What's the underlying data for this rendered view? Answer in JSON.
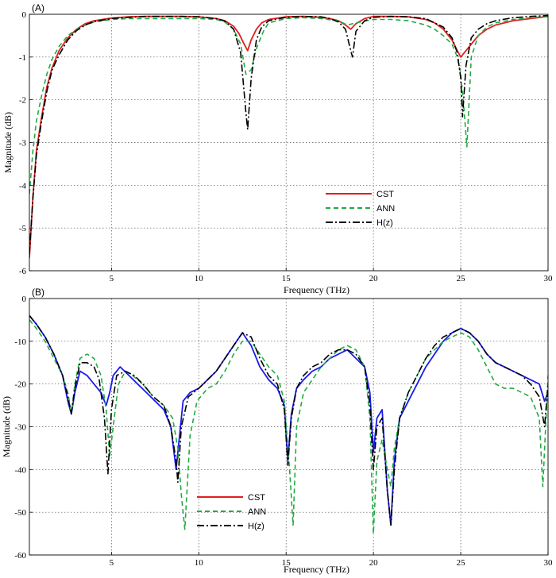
{
  "chart_data": [
    {
      "type": "line",
      "panel_label": "(A)",
      "xlabel": "Frequency (THz)",
      "ylabel": "Magnitude (dB)",
      "xlim": [
        0.3,
        30
      ],
      "ylim": [
        -6,
        0
      ],
      "x_ticks": [
        5,
        10,
        15,
        20,
        25,
        30
      ],
      "y_ticks": [
        0,
        -1,
        -2,
        -3,
        -4,
        -5,
        -6
      ],
      "grid": true,
      "legend_position": "lower-center",
      "series": [
        {
          "name": "CST",
          "color": "#e02020",
          "style": "solid",
          "x": [
            0.3,
            0.5,
            0.7,
            1.0,
            1.3,
            1.6,
            2.0,
            2.5,
            3.0,
            3.5,
            4.0,
            5.0,
            6.0,
            7.0,
            8.0,
            9.0,
            10.0,
            11.0,
            11.5,
            12.0,
            12.3,
            12.6,
            12.8,
            13.0,
            13.3,
            13.6,
            14.0,
            15.0,
            16.0,
            17.0,
            17.5,
            18.0,
            18.4,
            18.7,
            19.0,
            19.5,
            20.0,
            21.0,
            22.0,
            23.0,
            23.5,
            24.0,
            24.5,
            24.8,
            25.0,
            25.2,
            25.4,
            25.7,
            26.0,
            26.5,
            27.0,
            28.0,
            29.0,
            30.0
          ],
          "y": [
            -5.7,
            -4.3,
            -3.2,
            -2.4,
            -1.7,
            -1.25,
            -0.85,
            -0.55,
            -0.35,
            -0.22,
            -0.15,
            -0.09,
            -0.06,
            -0.05,
            -0.05,
            -0.05,
            -0.06,
            -0.1,
            -0.15,
            -0.28,
            -0.45,
            -0.7,
            -0.85,
            -0.6,
            -0.35,
            -0.2,
            -0.12,
            -0.06,
            -0.05,
            -0.07,
            -0.1,
            -0.15,
            -0.25,
            -0.35,
            -0.22,
            -0.1,
            -0.05,
            -0.05,
            -0.06,
            -0.12,
            -0.2,
            -0.35,
            -0.6,
            -0.85,
            -1.0,
            -0.9,
            -0.8,
            -0.65,
            -0.5,
            -0.35,
            -0.25,
            -0.15,
            -0.1,
            -0.05
          ]
        },
        {
          "name": "ANN",
          "color": "#22aa44",
          "style": "dashed",
          "x": [
            0.3,
            0.5,
            0.7,
            1.0,
            1.3,
            1.6,
            2.0,
            2.5,
            3.0,
            3.5,
            4.0,
            5.0,
            6.0,
            7.0,
            8.0,
            9.0,
            10.0,
            11.0,
            11.5,
            12.0,
            12.4,
            12.7,
            13.0,
            13.3,
            13.7,
            14.0,
            15.0,
            16.0,
            17.0,
            18.0,
            18.5,
            19.0,
            20.0,
            21.0,
            22.0,
            23.0,
            23.5,
            24.0,
            24.5,
            24.8,
            25.0,
            25.2,
            25.35,
            25.6,
            26.0,
            26.5,
            27.0,
            28.0,
            29.0,
            30.0
          ],
          "y": [
            -4.2,
            -3.2,
            -2.5,
            -1.9,
            -1.4,
            -1.05,
            -0.75,
            -0.5,
            -0.35,
            -0.25,
            -0.18,
            -0.12,
            -0.1,
            -0.1,
            -0.1,
            -0.1,
            -0.1,
            -0.12,
            -0.18,
            -0.35,
            -0.7,
            -1.4,
            -1.3,
            -0.8,
            -0.4,
            -0.2,
            -0.1,
            -0.08,
            -0.1,
            -0.15,
            -0.25,
            -0.2,
            -0.12,
            -0.12,
            -0.15,
            -0.25,
            -0.35,
            -0.5,
            -0.7,
            -1.0,
            -1.4,
            -2.3,
            -3.1,
            -1.0,
            -0.5,
            -0.3,
            -0.2,
            -0.12,
            -0.08,
            -0.05
          ]
        },
        {
          "name": "H(z)",
          "color": "#000000",
          "style": "dashdot",
          "x": [
            0.3,
            0.5,
            0.7,
            1.0,
            1.3,
            1.6,
            2.0,
            2.5,
            3.0,
            3.5,
            4.0,
            5.0,
            6.0,
            7.0,
            8.0,
            9.0,
            10.0,
            11.0,
            11.5,
            12.0,
            12.4,
            12.7,
            12.8,
            13.0,
            13.3,
            13.6,
            14.0,
            15.0,
            16.0,
            17.0,
            17.5,
            18.0,
            18.4,
            18.7,
            18.8,
            19.0,
            19.5,
            20.0,
            21.0,
            22.0,
            23.0,
            24.0,
            24.5,
            24.8,
            25.0,
            25.1,
            25.3,
            25.6,
            26.0,
            26.5,
            27.0,
            28.0,
            29.0,
            30.0
          ],
          "y": [
            -5.6,
            -4.3,
            -3.3,
            -2.5,
            -1.8,
            -1.3,
            -0.95,
            -0.6,
            -0.38,
            -0.25,
            -0.17,
            -0.1,
            -0.07,
            -0.05,
            -0.05,
            -0.05,
            -0.06,
            -0.1,
            -0.16,
            -0.35,
            -0.9,
            -2.3,
            -2.7,
            -1.5,
            -0.6,
            -0.3,
            -0.15,
            -0.07,
            -0.05,
            -0.06,
            -0.1,
            -0.18,
            -0.35,
            -0.85,
            -1.0,
            -0.4,
            -0.15,
            -0.07,
            -0.05,
            -0.06,
            -0.1,
            -0.3,
            -0.55,
            -0.9,
            -1.5,
            -2.4,
            -1.2,
            -0.55,
            -0.35,
            -0.22,
            -0.15,
            -0.08,
            -0.05,
            -0.03
          ]
        }
      ]
    },
    {
      "type": "line",
      "panel_label": "(B)",
      "xlabel": "Frequency (THz)",
      "ylabel": "Magnitude (dB)",
      "xlim": [
        0.3,
        30
      ],
      "ylim": [
        -60,
        0
      ],
      "x_ticks": [
        5,
        10,
        15,
        20,
        25,
        30
      ],
      "y_ticks": [
        0,
        -10,
        -20,
        -30,
        -40,
        -50,
        -60
      ],
      "grid": true,
      "legend_position": "lower-left-center",
      "series": [
        {
          "name": "CST",
          "color": "#1a1aee",
          "legend_color": "#e02020",
          "style": "solid",
          "x": [
            0.3,
            0.7,
            1.2,
            1.7,
            2.2,
            2.5,
            2.7,
            2.9,
            3.2,
            3.6,
            4.0,
            4.4,
            4.7,
            4.9,
            5.1,
            5.5,
            6.0,
            6.5,
            7.0,
            7.5,
            8.0,
            8.4,
            8.7,
            8.9,
            9.1,
            9.5,
            10.0,
            10.5,
            11.0,
            11.5,
            12.0,
            12.5,
            13.0,
            13.5,
            14.0,
            14.5,
            14.9,
            15.1,
            15.3,
            15.6,
            16.0,
            16.5,
            17.0,
            17.5,
            18.0,
            18.5,
            19.0,
            19.5,
            19.8,
            20.0,
            20.2,
            20.5,
            20.8,
            21.0,
            21.2,
            21.5,
            22.0,
            22.5,
            23.0,
            23.5,
            24.0,
            24.5,
            25.0,
            25.5,
            26.0,
            26.5,
            27.0,
            27.5,
            28.0,
            28.5,
            29.0,
            29.5,
            29.8,
            30.0
          ],
          "y": [
            -4,
            -6,
            -9,
            -13,
            -18,
            -24,
            -27,
            -22,
            -17,
            -18,
            -20,
            -22,
            -25,
            -22,
            -18,
            -16,
            -18,
            -20,
            -22,
            -24,
            -26,
            -30,
            -40,
            -32,
            -24,
            -22,
            -21,
            -19,
            -17,
            -14,
            -11,
            -8,
            -11,
            -16,
            -19,
            -21,
            -25,
            -38,
            -27,
            -21,
            -19,
            -17,
            -16,
            -14,
            -13,
            -12,
            -14,
            -16,
            -22,
            -36,
            -28,
            -26,
            -45,
            -53,
            -38,
            -28,
            -24,
            -20,
            -16,
            -13,
            -10,
            -8,
            -7,
            -8,
            -10,
            -13,
            -15,
            -16,
            -17,
            -18,
            -19,
            -20,
            -24,
            -22
          ]
        },
        {
          "name": "ANN",
          "color": "#22aa44",
          "style": "dashed",
          "x": [
            0.3,
            0.7,
            1.2,
            1.7,
            2.2,
            2.5,
            2.7,
            2.9,
            3.2,
            3.6,
            4.0,
            4.4,
            4.7,
            4.9,
            5.1,
            5.4,
            5.8,
            6.2,
            6.8,
            7.4,
            8.0,
            8.5,
            8.8,
            9.0,
            9.2,
            9.5,
            9.9,
            10.5,
            11.0,
            11.5,
            12.0,
            12.5,
            13.0,
            13.5,
            14.0,
            14.5,
            14.9,
            15.2,
            15.4,
            15.6,
            16.0,
            16.5,
            17.0,
            17.5,
            18.0,
            18.5,
            19.0,
            19.5,
            19.8,
            20.0,
            20.2,
            20.5,
            20.8,
            21.0,
            21.2,
            21.5,
            22.0,
            22.5,
            23.0,
            23.5,
            24.0,
            24.5,
            25.0,
            25.5,
            26.0,
            26.5,
            27.0,
            27.5,
            28.0,
            28.5,
            29.0,
            29.5,
            29.7,
            30.0
          ],
          "y": [
            -5,
            -7,
            -10,
            -14,
            -18,
            -22,
            -27,
            -20,
            -14,
            -13,
            -14,
            -18,
            -26,
            -37,
            -30,
            -20,
            -17,
            -18,
            -20,
            -23,
            -25,
            -28,
            -35,
            -46,
            -54,
            -32,
            -24,
            -21,
            -20,
            -17,
            -13,
            -10,
            -10,
            -13,
            -16,
            -18,
            -24,
            -40,
            -53,
            -30,
            -22,
            -19,
            -16,
            -14,
            -12,
            -11,
            -12,
            -16,
            -28,
            -55,
            -38,
            -33,
            -40,
            -44,
            -35,
            -28,
            -22,
            -18,
            -14,
            -12,
            -10,
            -9,
            -8,
            -9,
            -12,
            -16,
            -20,
            -21,
            -21,
            -22,
            -23,
            -28,
            -44,
            -18
          ]
        },
        {
          "name": "H(z)",
          "color": "#000000",
          "style": "dashdot",
          "x": [
            0.3,
            0.7,
            1.2,
            1.7,
            2.2,
            2.5,
            2.7,
            2.9,
            3.2,
            3.6,
            4.0,
            4.3,
            4.6,
            4.8,
            5.0,
            5.3,
            5.8,
            6.3,
            6.8,
            7.4,
            8.0,
            8.4,
            8.7,
            8.8,
            9.0,
            9.4,
            10.0,
            10.5,
            11.0,
            11.5,
            12.0,
            12.5,
            13.0,
            13.5,
            14.0,
            14.5,
            14.9,
            15.1,
            15.3,
            15.6,
            16.0,
            16.5,
            17.0,
            17.5,
            18.0,
            18.5,
            19.0,
            19.5,
            19.8,
            20.0,
            20.2,
            20.5,
            20.8,
            21.0,
            21.2,
            21.5,
            22.0,
            22.5,
            23.0,
            23.5,
            24.0,
            24.5,
            25.0,
            25.5,
            26.0,
            26.5,
            27.0,
            27.5,
            28.0,
            28.5,
            29.0,
            29.5,
            29.8,
            30.0
          ],
          "y": [
            -4,
            -6,
            -9,
            -13,
            -18,
            -23,
            -27,
            -21,
            -15,
            -15,
            -16,
            -19,
            -28,
            -41,
            -26,
            -18,
            -17,
            -18,
            -20,
            -23,
            -25,
            -30,
            -38,
            -43,
            -30,
            -23,
            -21,
            -19,
            -17,
            -14,
            -11,
            -8,
            -9,
            -14,
            -18,
            -20,
            -26,
            -39,
            -28,
            -21,
            -18,
            -16,
            -15,
            -13,
            -12,
            -12,
            -13,
            -16,
            -25,
            -40,
            -30,
            -28,
            -45,
            -53,
            -40,
            -28,
            -22,
            -18,
            -14,
            -11,
            -9,
            -8,
            -7,
            -8,
            -10,
            -13,
            -15,
            -16,
            -17,
            -18,
            -20,
            -23,
            -30,
            -20
          ]
        }
      ]
    }
  ]
}
